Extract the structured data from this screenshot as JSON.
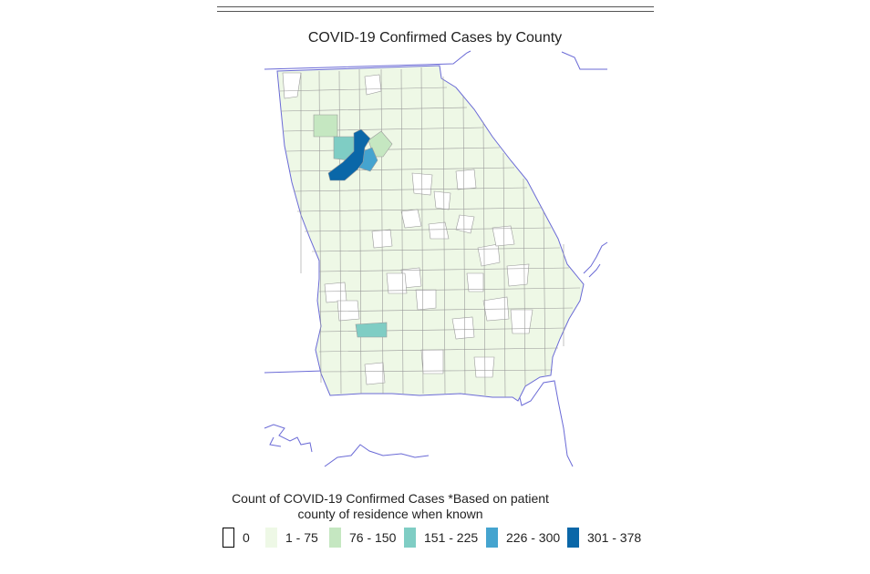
{
  "title": "COVID-19 Confirmed Cases by County",
  "legend": {
    "caption_line1": "Count of COVID-19 Confirmed Cases *Based on patient",
    "caption_line2": "county of residence when known",
    "items": [
      {
        "label": "0",
        "color": "#ffffff",
        "border": "#000000"
      },
      {
        "label": "1 - 75",
        "color": "#eef8e6",
        "border": "#eef8e6"
      },
      {
        "label": "76 - 150",
        "color": "#c5e7c1",
        "border": "#c5e7c1"
      },
      {
        "label": "151 - 225",
        "color": "#7fcdc4",
        "border": "#7fcdc4"
      },
      {
        "label": "226 - 300",
        "color": "#45a4cf",
        "border": "#45a4cf"
      },
      {
        "label": "301 - 378",
        "color": "#0a67a8",
        "border": "#0a67a8"
      }
    ]
  },
  "colors": {
    "border_lines": "#6a6ad6",
    "county_lines": "#9a9a9a"
  }
}
